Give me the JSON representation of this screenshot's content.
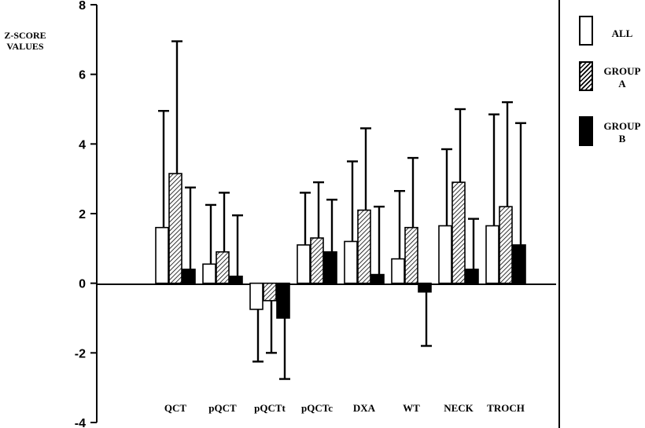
{
  "chart_data": {
    "type": "bar",
    "ylabel_lines": [
      "Z-SCORE",
      "VALUES"
    ],
    "xlabel": "",
    "ylim": [
      -4,
      8
    ],
    "yticks": [
      8,
      6,
      4,
      2,
      0,
      -2,
      -4
    ],
    "grid": false,
    "legend_placement": "right",
    "categories": [
      "QCT",
      "pQCT",
      "pQCTt",
      "pQCTc",
      "DXA",
      "WT",
      "NECK",
      "TROCH"
    ],
    "series": [
      {
        "name": "ALL",
        "legend_lines": [
          "ALL"
        ],
        "fill": "white",
        "values": [
          1.6,
          0.55,
          -0.75,
          1.1,
          1.2,
          0.7,
          1.65,
          1.65
        ],
        "error_ends": [
          4.95,
          2.25,
          -2.25,
          2.6,
          3.5,
          2.65,
          3.85,
          4.85
        ]
      },
      {
        "name": "GROUP A",
        "legend_lines": [
          "GROUP",
          "A"
        ],
        "fill": "hatched",
        "values": [
          3.15,
          0.9,
          -0.5,
          1.3,
          2.1,
          1.6,
          2.9,
          2.2
        ],
        "error_ends": [
          6.95,
          2.6,
          -2.0,
          2.9,
          4.45,
          3.6,
          5.0,
          5.2
        ]
      },
      {
        "name": "GROUP B",
        "legend_lines": [
          "GROUP",
          "B"
        ],
        "fill": "black",
        "values": [
          0.4,
          0.2,
          -1.0,
          0.9,
          0.25,
          -0.25,
          0.4,
          1.1
        ],
        "error_ends": [
          2.75,
          1.95,
          -2.75,
          2.4,
          2.2,
          -1.8,
          1.85,
          4.6
        ]
      }
    ]
  }
}
